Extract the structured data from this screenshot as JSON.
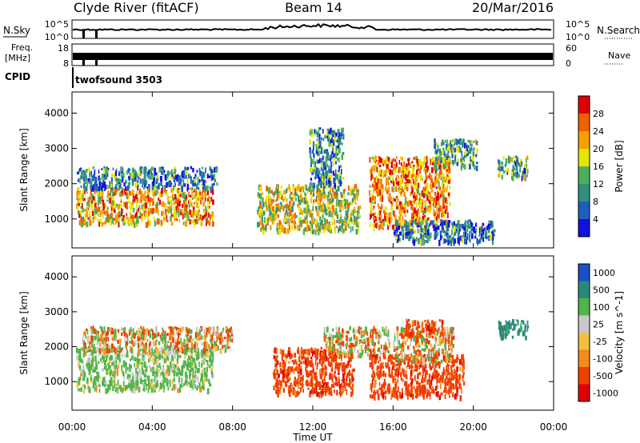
{
  "header": {
    "station": "Clyde River (fitACF)",
    "beam": "Beam 14",
    "date": "20/Mar/2016"
  },
  "strips": {
    "nsky": {
      "label": "N.Sky",
      "top_tick": "10^5",
      "bottom_tick": "10^0",
      "right_top": "10^5",
      "right_bottom": "10^0",
      "right_label": "N.Search"
    },
    "freq": {
      "label_1": "Freq.",
      "label_2": "[MHz]",
      "top_tick": "18",
      "bottom_tick": "8",
      "right_top": "60",
      "right_bottom": "0",
      "right_label": "Nave"
    },
    "cpid": {
      "label": "CPID",
      "value": "twofsound 3503"
    }
  },
  "x_axis": {
    "label": "Time UT",
    "ticks": [
      "00:00",
      "04:00",
      "08:00",
      "12:00",
      "16:00",
      "20:00",
      "00:00"
    ]
  },
  "colors": {
    "power": [
      "#1010e0",
      "#1e5fc0",
      "#2f8f7a",
      "#4db060",
      "#e6e600",
      "#f5a000",
      "#f06000",
      "#e00000"
    ],
    "velocity": [
      "#e00000",
      "#f04000",
      "#f58a1e",
      "#f0c040",
      "#c8c8c8",
      "#52b54a",
      "#2a8a78",
      "#1a4fc8"
    ]
  },
  "chart_data": [
    {
      "type": "heatmap",
      "ylabel": "Slant Range [km]",
      "ylim": [
        180,
        4600
      ],
      "yticks": [
        1000,
        2000,
        3000,
        4000
      ],
      "xlim_hours": [
        0,
        24
      ],
      "colorbar": {
        "label": "Power [dB]",
        "ticks": [
          "4",
          "8",
          "12",
          "16",
          "20",
          "24",
          "28"
        ],
        "range": [
          0,
          32
        ]
      },
      "regions": [
        {
          "t0": 0.2,
          "t1": 7.0,
          "r0": 900,
          "r1": 1900,
          "v": 22
        },
        {
          "t0": 0.2,
          "t1": 7.2,
          "r0": 1900,
          "r1": 2500,
          "v": 8
        },
        {
          "t0": 9.2,
          "t1": 14.3,
          "r0": 700,
          "r1": 2000,
          "v": 18
        },
        {
          "t0": 11.8,
          "t1": 13.5,
          "r0": 2000,
          "r1": 3600,
          "v": 10
        },
        {
          "t0": 14.8,
          "t1": 18.8,
          "r0": 800,
          "r1": 2800,
          "v": 24
        },
        {
          "t0": 18.0,
          "t1": 20.2,
          "r0": 2500,
          "r1": 3300,
          "v": 12
        },
        {
          "t0": 16.0,
          "t1": 21.0,
          "r0": 400,
          "r1": 1000,
          "v": 8
        },
        {
          "t0": 21.2,
          "t1": 22.7,
          "r0": 2200,
          "r1": 2800,
          "v": 12
        }
      ]
    },
    {
      "type": "heatmap",
      "ylabel": "Slant Range [km]",
      "ylim": [
        180,
        4600
      ],
      "yticks": [
        1000,
        2000,
        3000,
        4000
      ],
      "xlim_hours": [
        0,
        24
      ],
      "colorbar": {
        "label": "Velocity [m s^-1]",
        "ticks": [
          "1000",
          "500",
          "100",
          "25",
          "-25",
          "-100",
          "-500",
          "-1000"
        ],
        "range": [
          -1000,
          1000
        ]
      },
      "regions": [
        {
          "t0": 0.2,
          "t1": 7.0,
          "r0": 800,
          "r1": 2000,
          "v": 200
        },
        {
          "t0": 0.5,
          "t1": 8.0,
          "r0": 1900,
          "r1": 2600,
          "v": 0
        },
        {
          "t0": 10.0,
          "t1": 14.0,
          "r0": 700,
          "r1": 2000,
          "v": -300
        },
        {
          "t0": 12.5,
          "t1": 15.8,
          "r0": 1800,
          "r1": 2600,
          "v": 0
        },
        {
          "t0": 14.8,
          "t1": 19.5,
          "r0": 600,
          "r1": 1800,
          "v": -300
        },
        {
          "t0": 16.0,
          "t1": 19.0,
          "r0": 1600,
          "r1": 2600,
          "v": 0
        },
        {
          "t0": 16.5,
          "t1": 18.5,
          "r0": 2400,
          "r1": 2800,
          "v": -300
        },
        {
          "t0": 21.2,
          "t1": 22.7,
          "r0": 2300,
          "r1": 2800,
          "v": 700
        }
      ]
    }
  ]
}
